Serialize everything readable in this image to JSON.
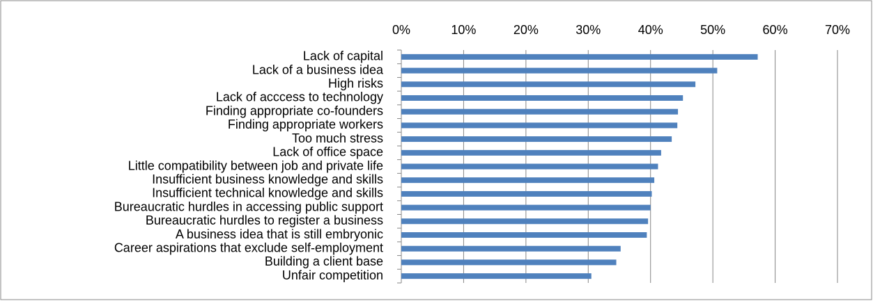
{
  "chart_data": {
    "type": "bar",
    "orientation": "horizontal",
    "categories": [
      "Lack of capital",
      "Lack of a business idea",
      "High risks",
      "Lack of acccess to technology",
      "Finding appropriate co-founders",
      "Finding appropriate workers",
      "Too much stress",
      "Lack of office space",
      "Little compatibility between job and private life",
      "Insufficient business knowledge and skills",
      "Insufficient technical knowledge and skills",
      "Bureaucratic hurdles in accessing public support",
      "Bureaucratic hurdles to register a business",
      "A business idea that is still embryonic",
      "Career aspirations that exclude self-employment",
      "Building a client base",
      "Unfair competition"
    ],
    "values": [
      57.2,
      50.7,
      47.2,
      45.2,
      44.4,
      44.3,
      43.4,
      41.7,
      41.2,
      40.6,
      40.2,
      40.0,
      39.6,
      39.4,
      35.2,
      34.5,
      30.5
    ],
    "color": "#4f81bd",
    "xlim": [
      0,
      70
    ],
    "xticks": [
      {
        "value": 0,
        "label": "0%"
      },
      {
        "value": 10,
        "label": "10%"
      },
      {
        "value": 20,
        "label": "20%"
      },
      {
        "value": 30,
        "label": "30%"
      },
      {
        "value": 40,
        "label": "40%"
      },
      {
        "value": 50,
        "label": "50%"
      },
      {
        "value": 60,
        "label": "60%"
      },
      {
        "value": 70,
        "label": "70%"
      }
    ],
    "grid": true
  }
}
